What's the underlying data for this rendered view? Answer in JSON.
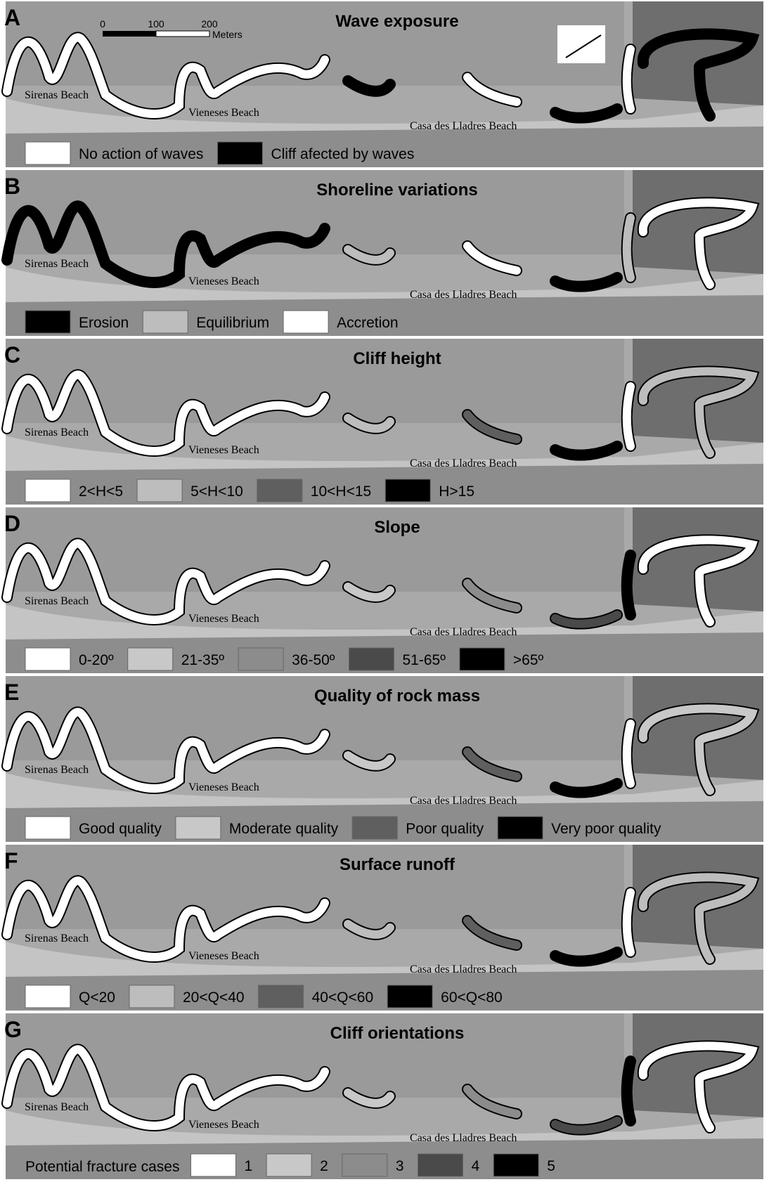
{
  "scale_bar": {
    "ticks": [
      "0",
      "100",
      "200"
    ],
    "unit": "Meters"
  },
  "panels": [
    {
      "letter": "A",
      "title": "Wave exposure",
      "places": [
        "Sirenas Beach",
        "Vieneses Beach",
        "Casa des Lladres Beach"
      ],
      "legend": {
        "items": [
          {
            "label": "No action of waves",
            "color": "#ffffff"
          },
          {
            "label": "Cliff afected by waves",
            "color": "#000000"
          }
        ]
      }
    },
    {
      "letter": "B",
      "title": "Shoreline variations",
      "places": [
        "Sirenas Beach",
        "Vieneses Beach",
        "Casa des Lladres Beach"
      ],
      "legend": {
        "items": [
          {
            "label": "Erosion",
            "color": "#000000"
          },
          {
            "label": "Equilibrium",
            "color": "#bdbdbd"
          },
          {
            "label": "Accretion",
            "color": "#ffffff"
          }
        ]
      }
    },
    {
      "letter": "C",
      "title": "Cliff height",
      "places": [
        "Sirenas Beach",
        "Vieneses Beach",
        "Casa des Lladres Beach"
      ],
      "legend": {
        "items": [
          {
            "label": "2<H<5",
            "color": "#ffffff"
          },
          {
            "label": "5<H<10",
            "color": "#bdbdbd"
          },
          {
            "label": "10<H<15",
            "color": "#5f5f5f"
          },
          {
            "label": "H>15",
            "color": "#000000"
          }
        ]
      }
    },
    {
      "letter": "D",
      "title": "Slope",
      "places": [
        "Sirenas Beach",
        "Vieneses Beach",
        "Casa des Lladres Beach"
      ],
      "legend": {
        "items": [
          {
            "label": "0-20º",
            "color": "#ffffff"
          },
          {
            "label": "21-35º",
            "color": "#c8c8c8"
          },
          {
            "label": "36-50º",
            "color": "#8c8c8c"
          },
          {
            "label": "51-65º",
            "color": "#4a4a4a"
          },
          {
            "label": ">65º",
            "color": "#000000"
          }
        ]
      }
    },
    {
      "letter": "E",
      "title": "Quality of rock mass",
      "places": [
        "Sirenas Beach",
        "Vieneses Beach",
        "Casa des Lladres Beach"
      ],
      "legend": {
        "items": [
          {
            "label": "Good quality",
            "color": "#ffffff"
          },
          {
            "label": "Moderate quality",
            "color": "#c8c8c8"
          },
          {
            "label": "Poor quality",
            "color": "#5f5f5f"
          },
          {
            "label": "Very poor quality",
            "color": "#000000"
          }
        ]
      }
    },
    {
      "letter": "F",
      "title": "Surface runoff",
      "places": [
        "Sirenas Beach",
        "Vieneses Beach",
        "Casa des Lladres Beach"
      ],
      "legend": {
        "items": [
          {
            "label": "Q<20",
            "color": "#ffffff"
          },
          {
            "label": "20<Q<40",
            "color": "#bdbdbd"
          },
          {
            "label": "40<Q<60",
            "color": "#5f5f5f"
          },
          {
            "label": "60<Q<80",
            "color": "#000000"
          }
        ]
      }
    },
    {
      "letter": "G",
      "title": "Cliff orientations",
      "places": [
        "Sirenas Beach",
        "Vieneses Beach",
        "Casa des Lladres Beach"
      ],
      "legend": {
        "label": "Potential fracture cases",
        "items": [
          {
            "label": "1",
            "color": "#ffffff"
          },
          {
            "label": "2",
            "color": "#c8c8c8"
          },
          {
            "label": "3",
            "color": "#8c8c8c"
          },
          {
            "label": "4",
            "color": "#4a4a4a"
          },
          {
            "label": "5",
            "color": "#000000"
          }
        ]
      }
    }
  ]
}
